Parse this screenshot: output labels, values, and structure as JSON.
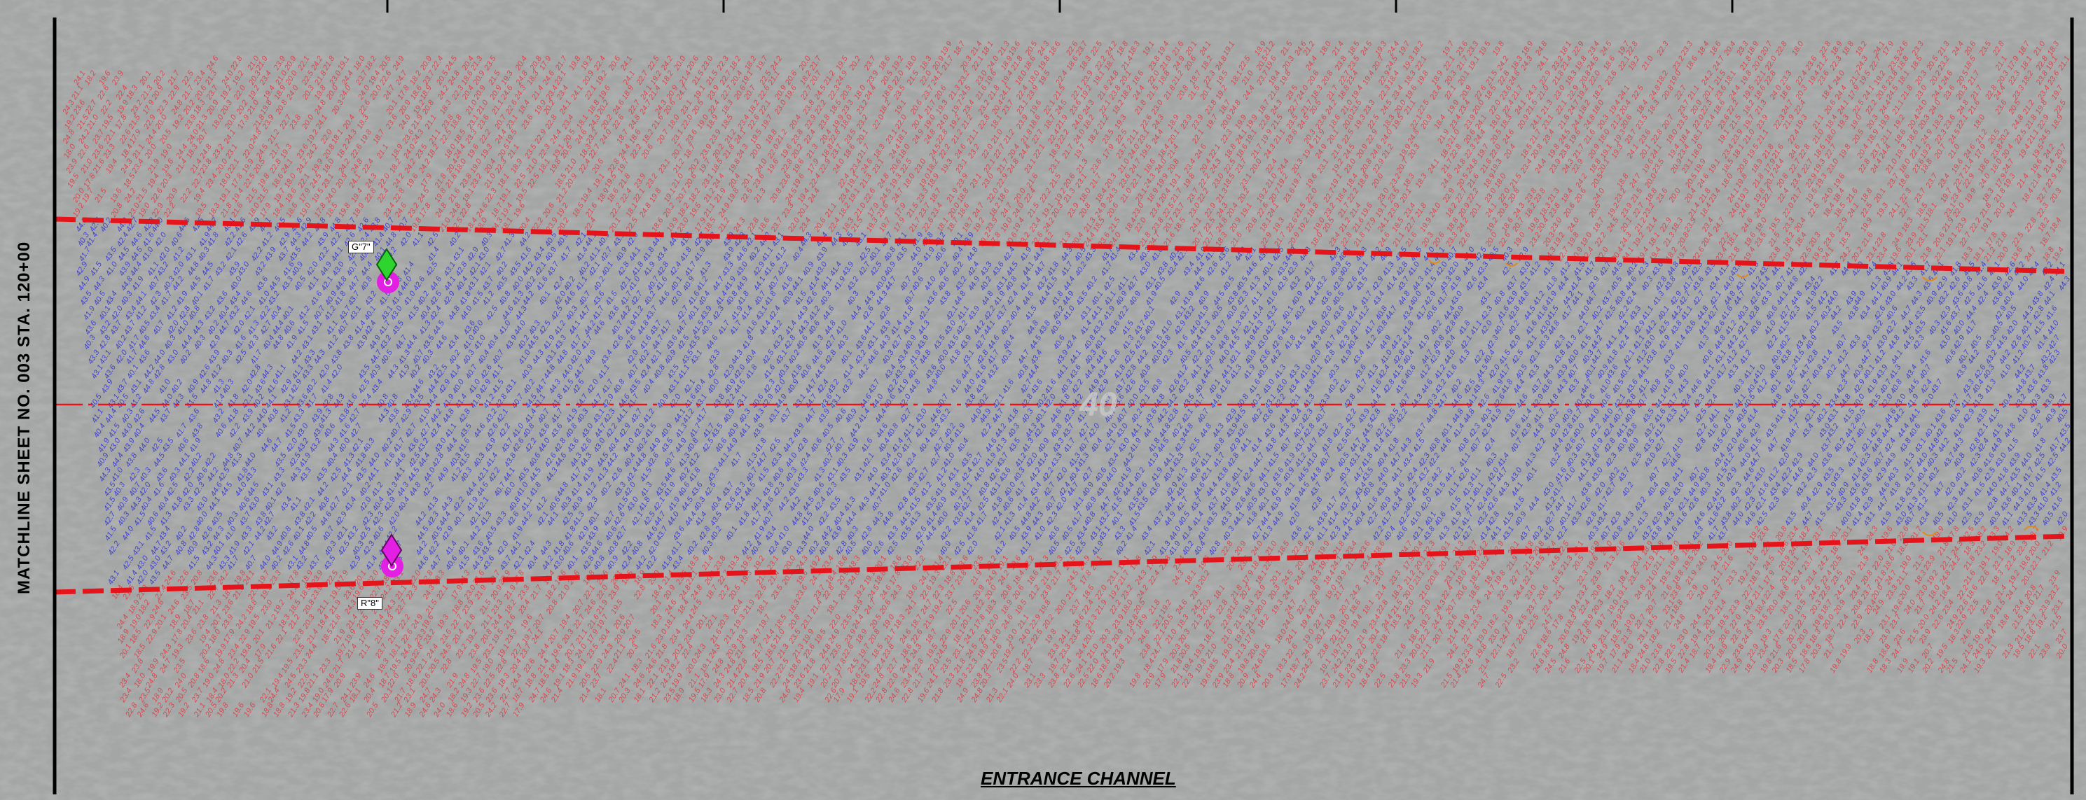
{
  "matchline_label": "MATCHLINE SHEET NO. 003 STA. 120+00",
  "channel_title": "ENTRANCE CHANNEL",
  "project_depth_label": "40",
  "buoys": [
    {
      "tag": "G\"7\"",
      "color": "#2fd52f",
      "side": "north"
    },
    {
      "tag": "R\"8\"",
      "color": "#e21fe2",
      "side": "south"
    }
  ],
  "colors": {
    "water": "#a4a6a5",
    "toe_line": "#e5141a",
    "inside_soundings": "#2a2ad6",
    "outside_soundings": "#e0313a",
    "buoy_circle": "#e21fe2",
    "survey_marks": "#e08a1a"
  },
  "sounding_ranges": {
    "inside_channel": [
      40.0,
      44.9
    ],
    "outside_channel": [
      17.8,
      24.9
    ]
  },
  "icons": [
    "north-buoy-icon",
    "south-buoy-icon",
    "station-tick-icon"
  ]
}
